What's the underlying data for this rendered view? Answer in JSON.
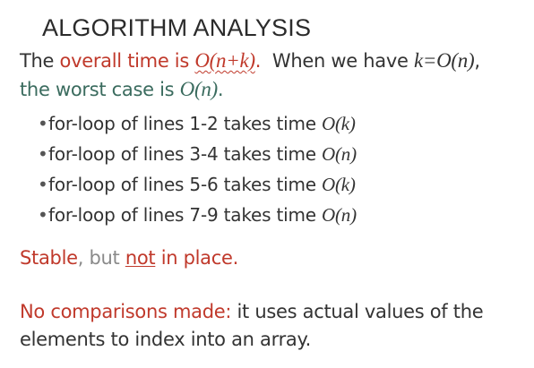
{
  "slide": {
    "title": "ALGORITHM ANALYSIS",
    "intro": {
      "the": "The ",
      "overall_time_is": "overall time is ",
      "complexity": "O(n+k)",
      "period": ". ",
      "when_we_have": "When we have ",
      "condition": "k=O(n)",
      "comma": ",",
      "worst_case_is": "the worst case is ",
      "worst_case_value": "O(n)",
      "end": "."
    },
    "bullets": [
      {
        "text": "for-loop of lines 1-2 takes time ",
        "bound": "O(k)"
      },
      {
        "text": "for-loop of lines 3-4 takes time ",
        "bound": "O(n)"
      },
      {
        "text": "for-loop of lines 5-6 takes time ",
        "bound": "O(k)"
      },
      {
        "text": "for-loop of lines 7-9 takes time ",
        "bound": "O(n)"
      }
    ],
    "stability": {
      "stable": "Stable",
      "but": ", but ",
      "not": "not",
      "in_place": " in place."
    },
    "note": {
      "highlight": "No comparisons made:",
      "rest": " it uses actual values of the elements to index into an array."
    }
  },
  "colors": {
    "accent_red": "#c0392b",
    "teal": "#3a6b5e",
    "body_text": "#333333",
    "muted": "#8a8a8a"
  }
}
